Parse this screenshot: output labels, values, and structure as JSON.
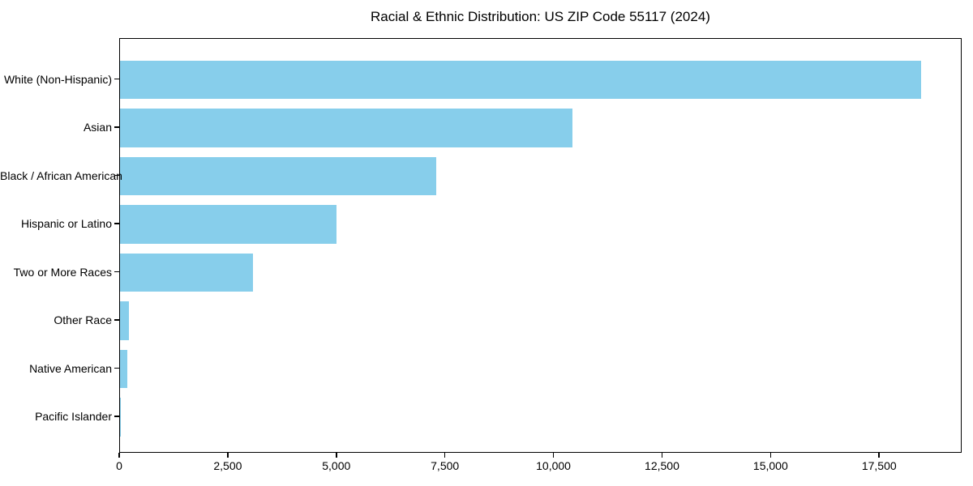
{
  "chart_data": {
    "type": "bar",
    "orientation": "horizontal",
    "title": "Racial & Ethnic Distribution: US ZIP Code 55117 (2024)",
    "categories": [
      "White (Non-Hispanic)",
      "Asian",
      "Black / African American",
      "Hispanic or Latino",
      "Two or More Races",
      "Other Race",
      "Native American",
      "Pacific Islander"
    ],
    "values": [
      18500,
      10450,
      7300,
      5000,
      3080,
      210,
      170,
      25
    ],
    "xlabel": "",
    "ylabel": "",
    "xlim": [
      0,
      19400
    ],
    "xtick_values": [
      0,
      2500,
      5000,
      7500,
      10000,
      12500,
      15000,
      17500
    ],
    "xtick_labels": [
      "0",
      "2,500",
      "5,000",
      "7,500",
      "10,000",
      "12,500",
      "15,000",
      "17,500"
    ],
    "bar_color": "#87CEEB",
    "background_color": "#ffffff",
    "axis_color": "#000000",
    "grid": false,
    "legend": null
  }
}
